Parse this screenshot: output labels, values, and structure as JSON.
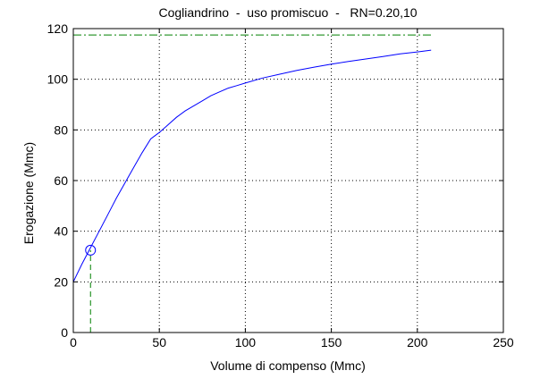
{
  "chart_data": {
    "type": "line",
    "title": "Cogliandrino  -  uso promiscuo  -   RN=0.20,10",
    "xlabel": "Volume di compenso (Mmc)",
    "ylabel": "Erogazione (Mmc)",
    "xlim": [
      0,
      250
    ],
    "ylim": [
      0,
      120
    ],
    "xticks": [
      0,
      50,
      100,
      150,
      200,
      250
    ],
    "yticks": [
      0,
      20,
      40,
      60,
      80,
      100,
      120
    ],
    "grid": true,
    "series": [
      {
        "color": "#0000ff",
        "line_style": "solid",
        "x": [
          0,
          5,
          10,
          15,
          20,
          25,
          30,
          35,
          40,
          45,
          50,
          55,
          60,
          65,
          70,
          75,
          80,
          85,
          90,
          95,
          100,
          110,
          120,
          130,
          140,
          150,
          160,
          170,
          180,
          190,
          200,
          208
        ],
        "y": [
          20,
          27,
          33.5,
          40,
          46.5,
          53,
          59,
          65,
          71,
          76.5,
          79,
          82,
          85,
          87.5,
          89.5,
          91.5,
          93.5,
          95,
          96.5,
          97.5,
          98.5,
          100.5,
          102,
          103.5,
          104.8,
          106,
          107,
          108,
          109,
          110,
          110.8,
          111.5
        ]
      }
    ],
    "reference_lines": [
      {
        "orientation": "horizontal",
        "value": 117.5,
        "x_range": [
          0,
          208
        ],
        "color": "#008000",
        "line_style": "dashdot"
      },
      {
        "orientation": "vertical",
        "value": 10,
        "y_range": [
          0,
          32.5
        ],
        "color": "#008000",
        "line_style": "dashed"
      }
    ],
    "markers": [
      {
        "shape": "circle",
        "x": 10,
        "y": 32.5,
        "color": "#0000ff"
      }
    ]
  }
}
